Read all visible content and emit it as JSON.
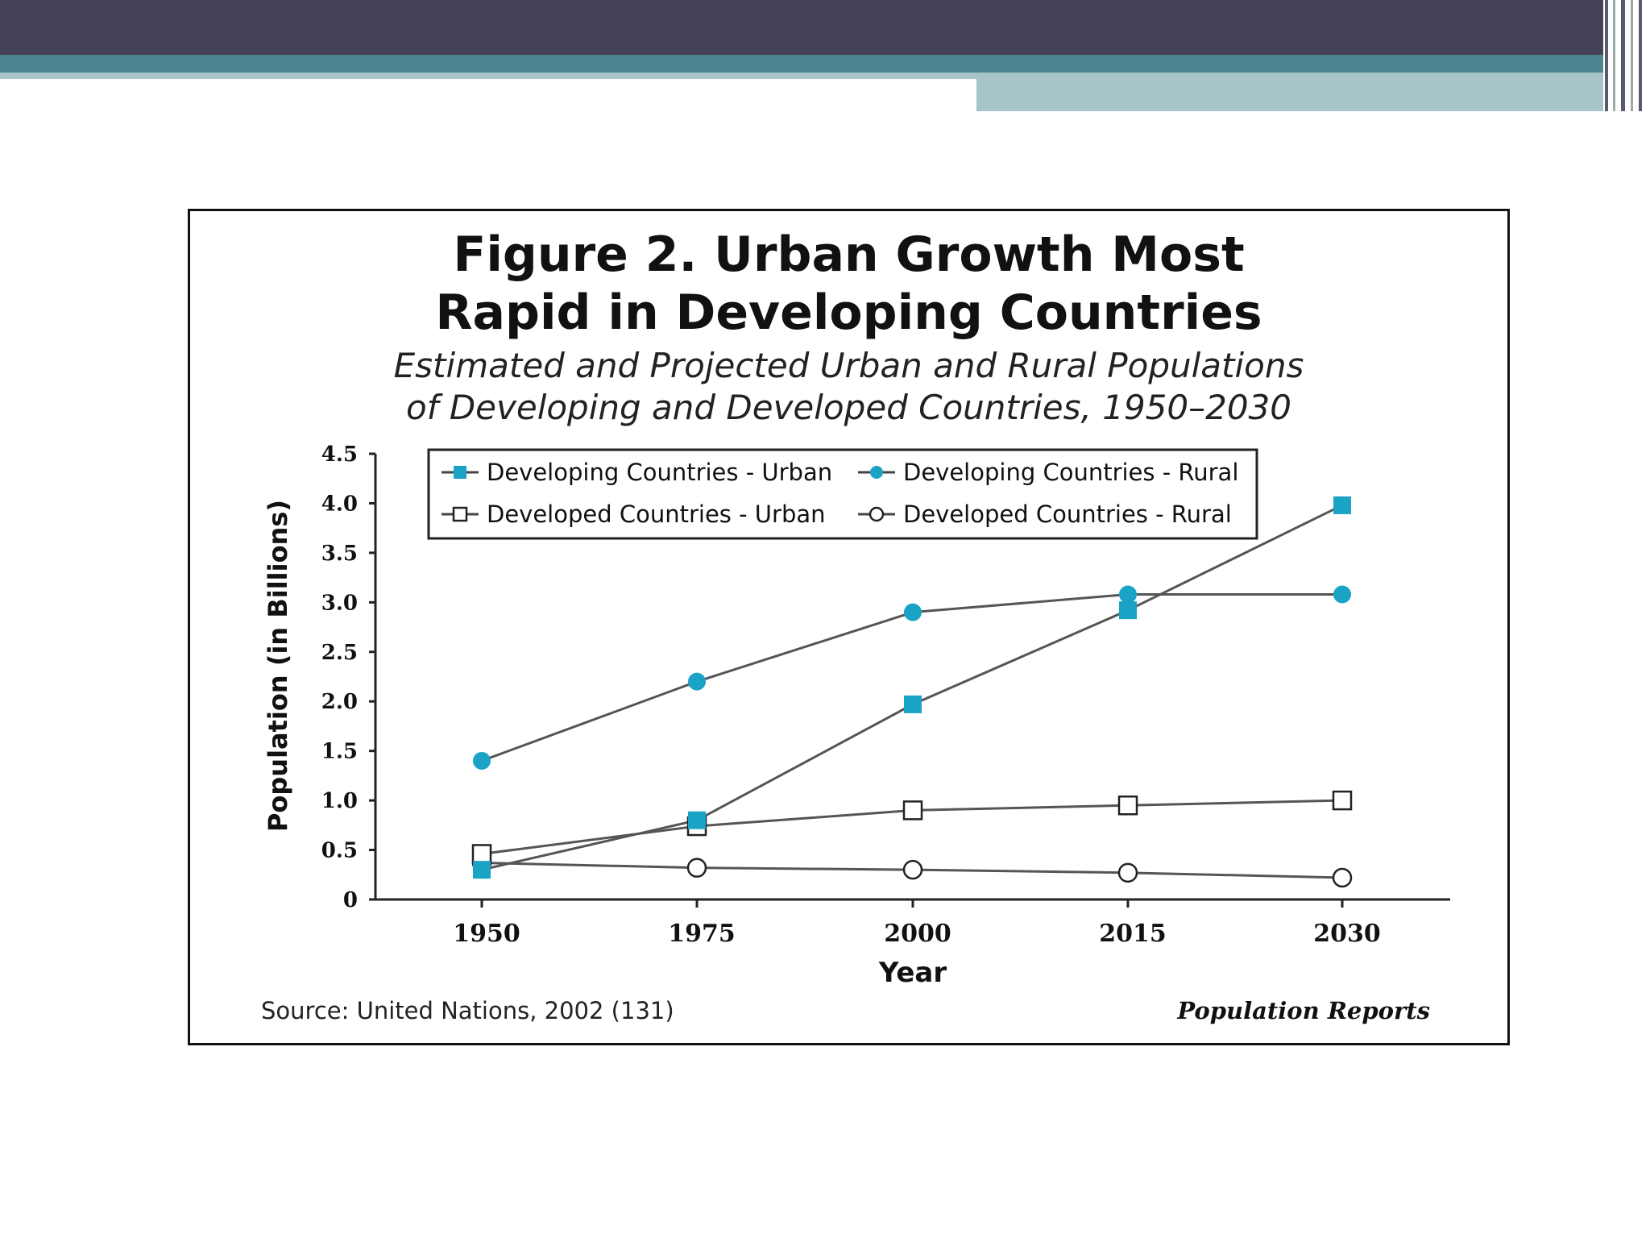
{
  "slide": {
    "colors": {
      "dark_band": "#434259",
      "teal_band": "#4a8590",
      "light_band": "#a7c4c8"
    }
  },
  "figure": {
    "title_line1": "Figure 2. Urban Growth Most",
    "title_line2": "Rapid in Developing Countries",
    "subtitle_line1": "Estimated and Projected Urban and Rural Populations",
    "subtitle_line2": "of Developing and Developed Countries, 1950–2030",
    "source": "Source: United Nations, 2002 (131)",
    "publisher": "Population Reports"
  },
  "chart_data": {
    "type": "line",
    "title": "Figure 2. Urban Growth Most Rapid in Developing Countries",
    "subtitle": "Estimated and Projected Urban and Rural Populations of Developing and Developed Countries, 1950–2030",
    "xlabel": "Year",
    "ylabel": "Population  (in Billions)",
    "x": [
      "1950",
      "1975",
      "2000",
      "2015",
      "2030"
    ],
    "ylim": [
      0,
      4.5
    ],
    "yticks": [
      "0",
      "0.5",
      "1.0",
      "1.5",
      "2.0",
      "2.5",
      "3.0",
      "3.5",
      "4.0",
      "4.5"
    ],
    "grid": false,
    "legend_position": "top",
    "series": [
      {
        "name": "Developing Countries - Urban",
        "marker": "filled-square",
        "color": "#1aa3c4",
        "values": [
          0.3,
          0.8,
          1.97,
          2.92,
          3.98
        ]
      },
      {
        "name": "Developing Countries - Rural",
        "marker": "filled-circle",
        "color": "#1aa3c4",
        "values": [
          1.4,
          2.2,
          2.9,
          3.08,
          3.08
        ]
      },
      {
        "name": "Developed Countries - Urban",
        "marker": "open-square",
        "color": "#333333",
        "values": [
          0.46,
          0.74,
          0.9,
          0.95,
          1.0
        ]
      },
      {
        "name": "Developed Countries - Rural",
        "marker": "open-circle",
        "color": "#333333",
        "values": [
          0.37,
          0.32,
          0.3,
          0.27,
          0.22
        ]
      }
    ]
  }
}
